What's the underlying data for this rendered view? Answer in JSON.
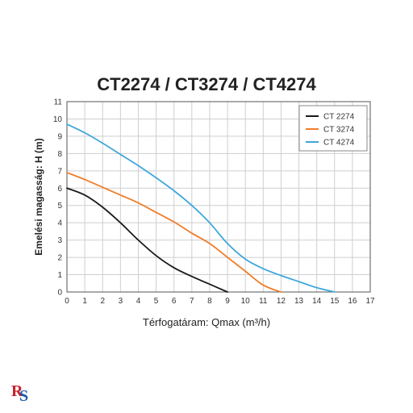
{
  "chart_data": {
    "type": "line",
    "title": "CT2274 / CT3274 / CT4274",
    "xlabel": "Térfogatáram: Qmax (m³/h)",
    "ylabel": "Emelési magasság: H (m)",
    "xlim": [
      0,
      17
    ],
    "ylim": [
      0,
      11
    ],
    "xticks": [
      "0",
      "1",
      "2",
      "3",
      "4",
      "5",
      "6",
      "7",
      "8",
      "9",
      "10",
      "11",
      "12",
      "13",
      "14",
      "15",
      "16",
      "17"
    ],
    "yticks": [
      "0",
      "1",
      "2",
      "3",
      "4",
      "5",
      "6",
      "7",
      "8",
      "9",
      "10",
      "11"
    ],
    "grid": true,
    "legend_position": "top-right",
    "series": [
      {
        "name": "CT 2274",
        "color": "#1a1a1a",
        "x": [
          0,
          1,
          2,
          3,
          4,
          5,
          6,
          7,
          8,
          9
        ],
        "y": [
          6.0,
          5.6,
          4.9,
          4.0,
          3.0,
          2.1,
          1.4,
          0.9,
          0.45,
          0.0
        ]
      },
      {
        "name": "CT 3274",
        "color": "#f07d2a",
        "x": [
          0,
          1,
          2,
          3,
          4,
          5,
          6,
          7,
          8,
          9,
          10,
          11,
          12
        ],
        "y": [
          6.9,
          6.5,
          6.05,
          5.6,
          5.15,
          4.6,
          4.05,
          3.4,
          2.8,
          2.0,
          1.2,
          0.4,
          0.0
        ]
      },
      {
        "name": "CT 4274",
        "color": "#3ea7dc",
        "x": [
          0,
          1,
          2,
          3,
          4,
          5,
          6,
          7,
          8,
          9,
          10,
          11,
          12,
          13,
          14,
          15
        ],
        "y": [
          9.7,
          9.2,
          8.6,
          7.95,
          7.3,
          6.6,
          5.85,
          5.0,
          4.0,
          2.8,
          1.9,
          1.35,
          0.95,
          0.6,
          0.25,
          0.0
        ]
      }
    ]
  },
  "logo": {
    "name": "logo-icon",
    "colors": [
      "#c8202f",
      "#1f5aa8"
    ]
  }
}
